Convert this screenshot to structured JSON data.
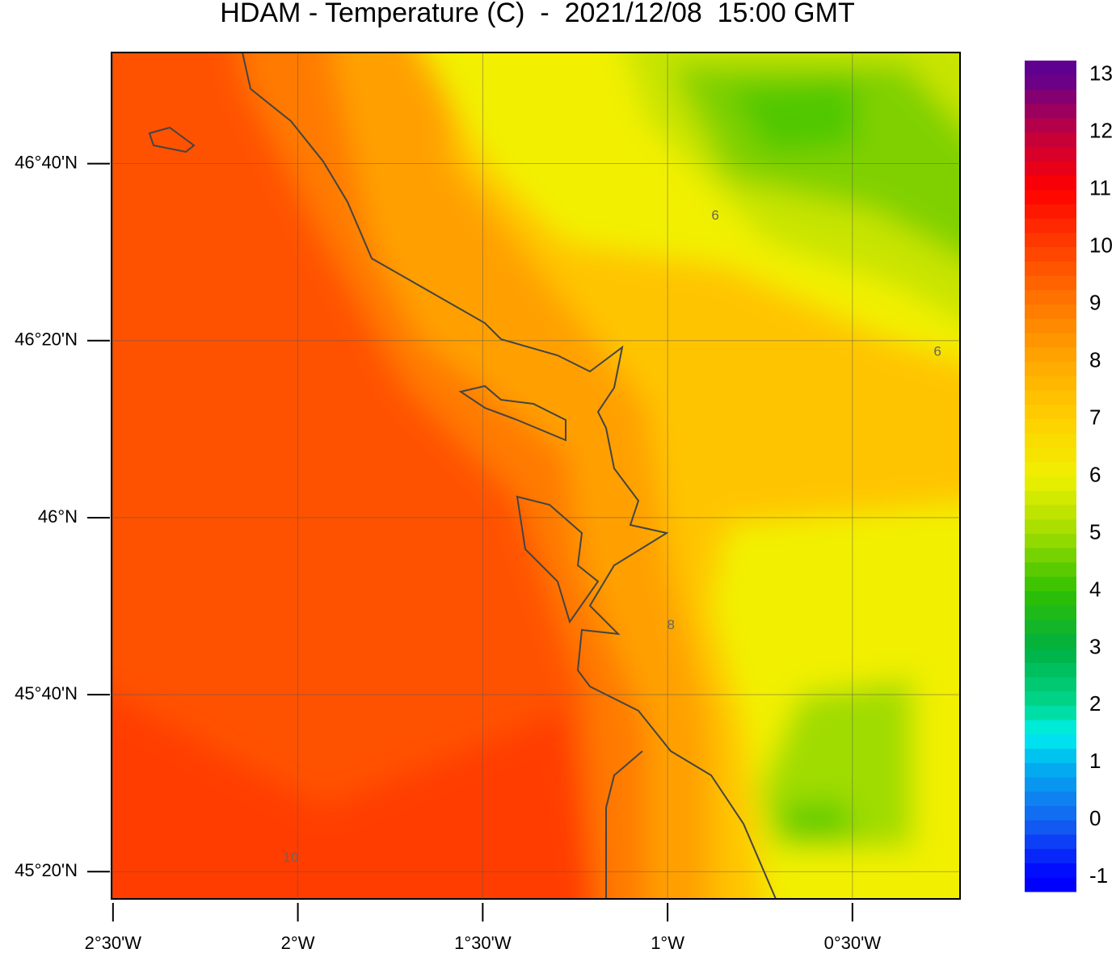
{
  "map": {
    "title": "HDAM - Temperature (C)  -  2021/12/08  15:00 GMT",
    "xlim": [
      -2.504,
      -0.209
    ],
    "ylim": [
      45.282,
      46.876
    ],
    "xticks": [
      {
        "value": -2.5,
        "label": "2°30'W"
      },
      {
        "value": -2.0,
        "label": "2°W"
      },
      {
        "value": -1.5,
        "label": "1°30'W"
      },
      {
        "value": -1.0,
        "label": "1°W"
      },
      {
        "value": -0.5,
        "label": "0°30'W"
      }
    ],
    "yticks": [
      {
        "value": 46.6667,
        "label": "46°40'N"
      },
      {
        "value": 46.3333,
        "label": "46°20'N"
      },
      {
        "value": 46.0,
        "label": "46°N"
      },
      {
        "value": 45.6667,
        "label": "45°40'N"
      },
      {
        "value": 45.3333,
        "label": "45°20'N"
      }
    ],
    "grid": true,
    "contour_labels": [
      {
        "value": 10,
        "lon": -2.019,
        "lat": 45.359
      },
      {
        "value": 6,
        "lon": -0.871,
        "lat": 46.568
      },
      {
        "value": 8,
        "lon": -0.991,
        "lat": 45.797
      },
      {
        "value": 6,
        "lon": -0.27,
        "lat": 46.312
      }
    ],
    "colorbar": {
      "clim": [
        -1.25,
        13.25
      ],
      "ticks": [
        13,
        12,
        11,
        10,
        9,
        8,
        7,
        6,
        5,
        4,
        3,
        2,
        1,
        0,
        -1
      ]
    }
  }
}
